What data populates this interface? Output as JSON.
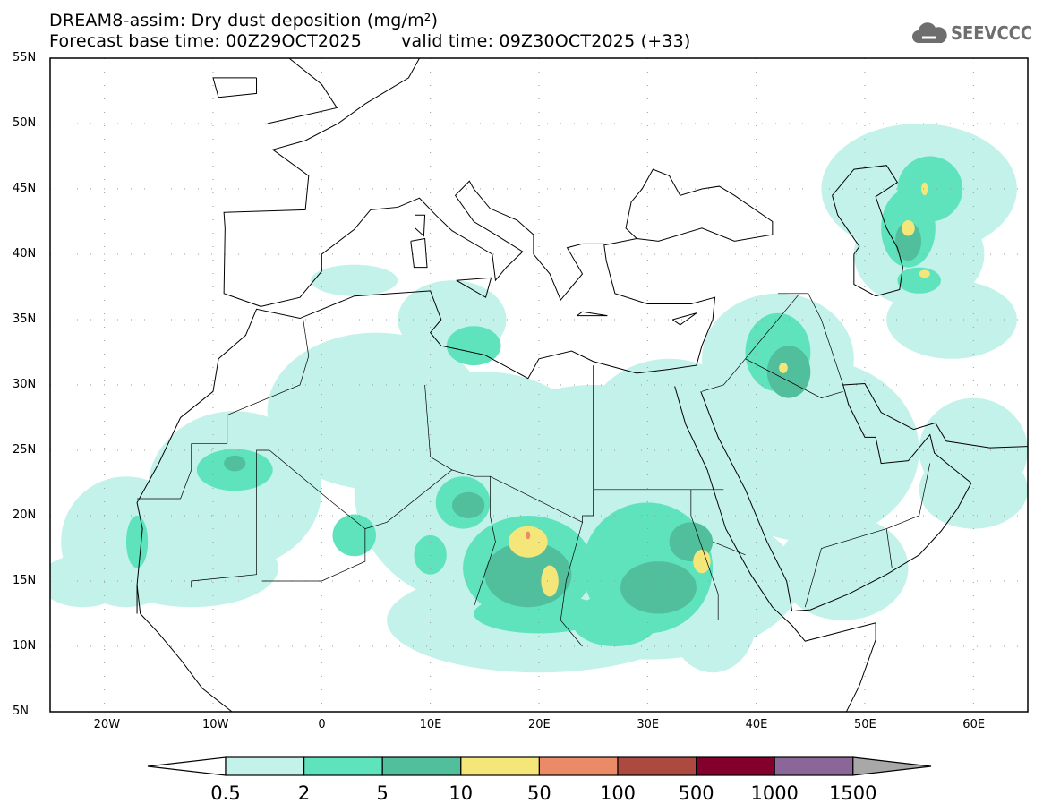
{
  "header": {
    "title": "DREAM8-assim: Dry dust deposition (mg/m²)",
    "base_time": "Forecast base time: 00Z29OCT2025",
    "valid_time": "valid time: 09Z30OCT2025 (+33)"
  },
  "logo": {
    "text": "SEEVCCC",
    "icon": "cloud-icon"
  },
  "map": {
    "lat_labels": [
      "55N",
      "50N",
      "45N",
      "40N",
      "35N",
      "30N",
      "25N",
      "20N",
      "15N",
      "10N",
      "5N"
    ],
    "lon_labels": [
      "20W",
      "10W",
      "0",
      "10E",
      "20E",
      "30E",
      "40E",
      "50E",
      "60E"
    ],
    "lon_range": [
      -25,
      65
    ],
    "lat_range": [
      5,
      55
    ]
  },
  "colorbar": {
    "ticks": [
      "0.5",
      "2",
      "5",
      "10",
      "50",
      "100",
      "500",
      "1000",
      "1500"
    ],
    "colors": [
      "#c3f2ea",
      "#5ee3bd",
      "#52bf9c",
      "#f5e67a",
      "#ea8a66",
      "#ad4a40",
      "#82002b",
      "#8b6799"
    ],
    "under_color": "#ffffff",
    "over_color": "#a8a8a8"
  }
}
